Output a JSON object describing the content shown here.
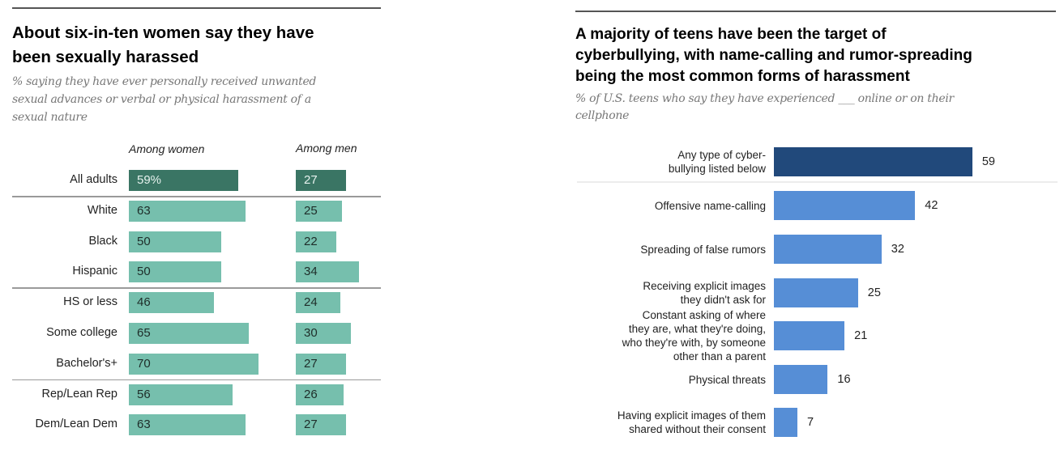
{
  "chart_data": [
    {
      "type": "bar",
      "orientation": "horizontal",
      "title": "About six-in-ten women say they have been sexually harassed",
      "title_lines": [
        "About six-in-ten women say they have",
        "been sexually harassed"
      ],
      "subtitle": "% saying they have ever personally received unwanted sexual advances or verbal or physical harassment of a sexual nature",
      "subtitle_lines": [
        "% saying they have ever personally received unwanted",
        "sexual advances or verbal or physical harassment of a",
        "sexual nature"
      ],
      "categories": [
        "All adults",
        "White",
        "Black",
        "Hispanic",
        "HS or less",
        "Some college",
        "Bachelor's+",
        "Rep/Lean Rep",
        "Dem/Lean Dem"
      ],
      "value_labels_women": [
        "59%",
        "63",
        "50",
        "50",
        "46",
        "65",
        "70",
        "56",
        "63"
      ],
      "value_labels_men": [
        "27",
        "25",
        "22",
        "34",
        "24",
        "30",
        "27",
        "26",
        "27"
      ],
      "series": [
        {
          "name": "Among women",
          "values": [
            59,
            63,
            50,
            50,
            46,
            65,
            70,
            56,
            63
          ]
        },
        {
          "name": "Among men",
          "values": [
            27,
            25,
            22,
            34,
            24,
            30,
            27,
            26,
            27
          ]
        }
      ],
      "groups_separated_after": [
        "All adults",
        "Hispanic",
        "Bachelor's+"
      ],
      "highlight_category": "All adults",
      "colors": {
        "highlight": "#3a7564",
        "normal": "#76bfad",
        "highlight_text": "#e6f2ee",
        "normal_text": "#1e2d29",
        "separator": "#9a9a9a"
      },
      "xlabel": "",
      "ylabel": "",
      "xlim": [
        0,
        100
      ],
      "grid": false,
      "legend": "column headers above bars"
    },
    {
      "type": "bar",
      "orientation": "horizontal",
      "title": "A majority of teens have been the target of cyberbullying, with name-calling and rumor-spreading being the most common forms of harassment",
      "title_lines": [
        "A majority of teens have been the target of",
        "cyberbullying, with name-calling and rumor-spreading",
        "being the most common forms of harassment"
      ],
      "subtitle": "% of U.S. teens who say they have experienced ___ online or on their cellphone",
      "subtitle_lines": [
        "% of U.S. teens who say they have experienced ___ online or on their",
        "cellphone"
      ],
      "categories": [
        "Any type of cyber-bullying listed below",
        "Offensive name-calling",
        "Spreading of false rumors",
        "Receiving explicit images they didn't ask for",
        "Constant asking of where they are, what they're doing, who they're with, by someone other than a parent",
        "Physical threats",
        "Having explicit images of them shared without their consent"
      ],
      "category_lines": [
        [
          "Any type of cyber-",
          "bullying listed below"
        ],
        [
          "Offensive name-calling"
        ],
        [
          "Spreading of false rumors"
        ],
        [
          "Receiving explicit images",
          "they didn't ask for"
        ],
        [
          "Constant asking of where",
          "they are, what they're doing,",
          "who they're with, by someone",
          "other than a parent"
        ],
        [
          "Physical threats"
        ],
        [
          "Having explicit images of them",
          "shared without their consent"
        ]
      ],
      "values": [
        59,
        42,
        32,
        25,
        21,
        16,
        7
      ],
      "value_labels": [
        "59",
        "42",
        "32",
        "25",
        "21",
        "16",
        "7"
      ],
      "highlight_category": "Any type of cyber-bullying listed below",
      "colors": {
        "highlight": "#21497b",
        "normal": "#568ed6",
        "separator": "#ececec"
      },
      "xlabel": "",
      "ylabel": "",
      "xlim": [
        0,
        100
      ],
      "grid": false,
      "legend": "none"
    }
  ]
}
